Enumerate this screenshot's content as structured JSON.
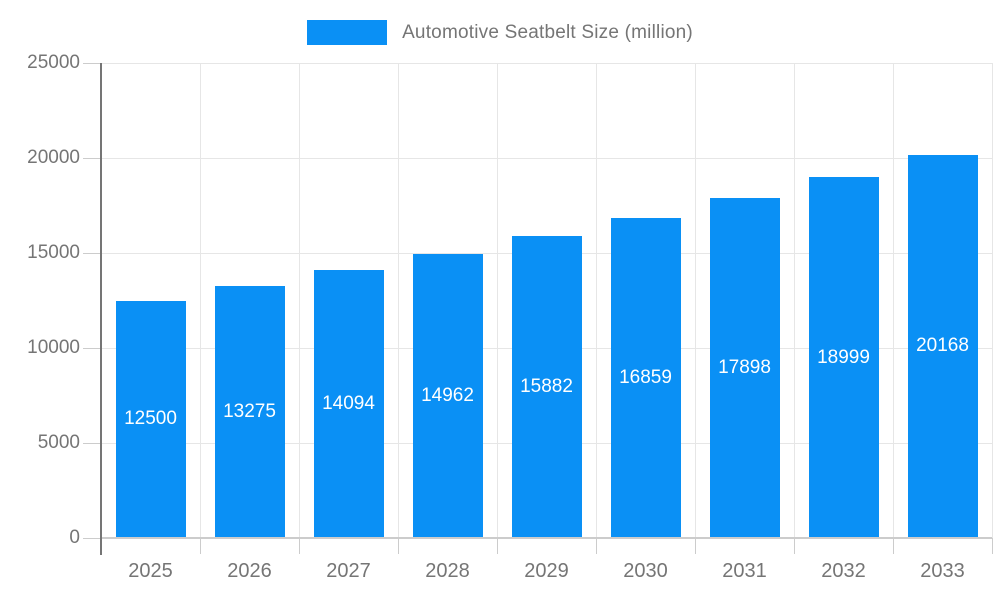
{
  "legend": {
    "label": "Automotive Seatbelt Size (million)"
  },
  "colors": {
    "bar": "#0a90f5",
    "bar_label": "#ffffff",
    "axis_text": "#757575",
    "y_axis_line": "#757575",
    "x_axis_line": "#cccccc",
    "gridline": "#e6e6e6",
    "tick": "#cccccc",
    "background": "#ffffff"
  },
  "chart_data": {
    "type": "bar",
    "title": "Automotive Seatbelt Size (million)",
    "categories": [
      "2025",
      "2026",
      "2027",
      "2028",
      "2029",
      "2030",
      "2031",
      "2032",
      "2033"
    ],
    "series": [
      {
        "name": "Automotive Seatbelt Size (million)",
        "values": [
          12500,
          13275,
          14094,
          14962,
          15882,
          16859,
          17898,
          18999,
          20168
        ]
      }
    ],
    "data_labels": [
      "12500",
      "13275",
      "14094",
      "14962",
      "15882",
      "16859",
      "17898",
      "18999",
      "20168"
    ],
    "xlabel": "",
    "ylabel": "",
    "ylim": [
      0,
      25000
    ],
    "yticks": [
      0,
      5000,
      10000,
      15000,
      20000,
      25000
    ],
    "ytick_labels": [
      "0",
      "5000",
      "10000",
      "15000",
      "20000",
      "25000"
    ],
    "grid": true,
    "legend_position": "top-center",
    "bar_label_position": "inside-center"
  }
}
